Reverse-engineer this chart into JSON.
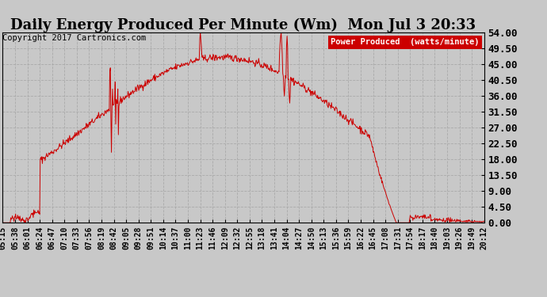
{
  "title": "Daily Energy Produced Per Minute (Wm)  Mon Jul 3 20:33",
  "copyright": "Copyright 2017 Cartronics.com",
  "legend_label": "Power Produced  (watts/minute)",
  "legend_bg": "#cc0000",
  "legend_fg": "#ffffff",
  "line_color": "#cc0000",
  "bg_color": "#c8c8c8",
  "plot_bg": "#c8c8c8",
  "grid_color": "#aaaaaa",
  "ymin": 0.0,
  "ymax": 54.0,
  "yticks": [
    0.0,
    4.5,
    9.0,
    13.5,
    18.0,
    22.5,
    27.0,
    31.5,
    36.0,
    40.5,
    45.0,
    49.5,
    54.0
  ],
  "xtick_labels": [
    "05:15",
    "05:38",
    "06:01",
    "06:24",
    "06:47",
    "07:10",
    "07:33",
    "07:56",
    "08:19",
    "08:42",
    "09:05",
    "09:28",
    "09:51",
    "10:14",
    "10:37",
    "11:00",
    "11:23",
    "11:46",
    "12:09",
    "12:32",
    "12:55",
    "13:18",
    "13:41",
    "14:04",
    "14:27",
    "14:50",
    "15:13",
    "15:36",
    "15:59",
    "16:22",
    "16:45",
    "17:08",
    "17:31",
    "17:54",
    "18:17",
    "18:40",
    "19:03",
    "19:26",
    "19:49",
    "20:12"
  ],
  "title_fontsize": 13,
  "tick_fontsize": 7,
  "copyright_fontsize": 7.5,
  "ytick_fontsize": 9
}
